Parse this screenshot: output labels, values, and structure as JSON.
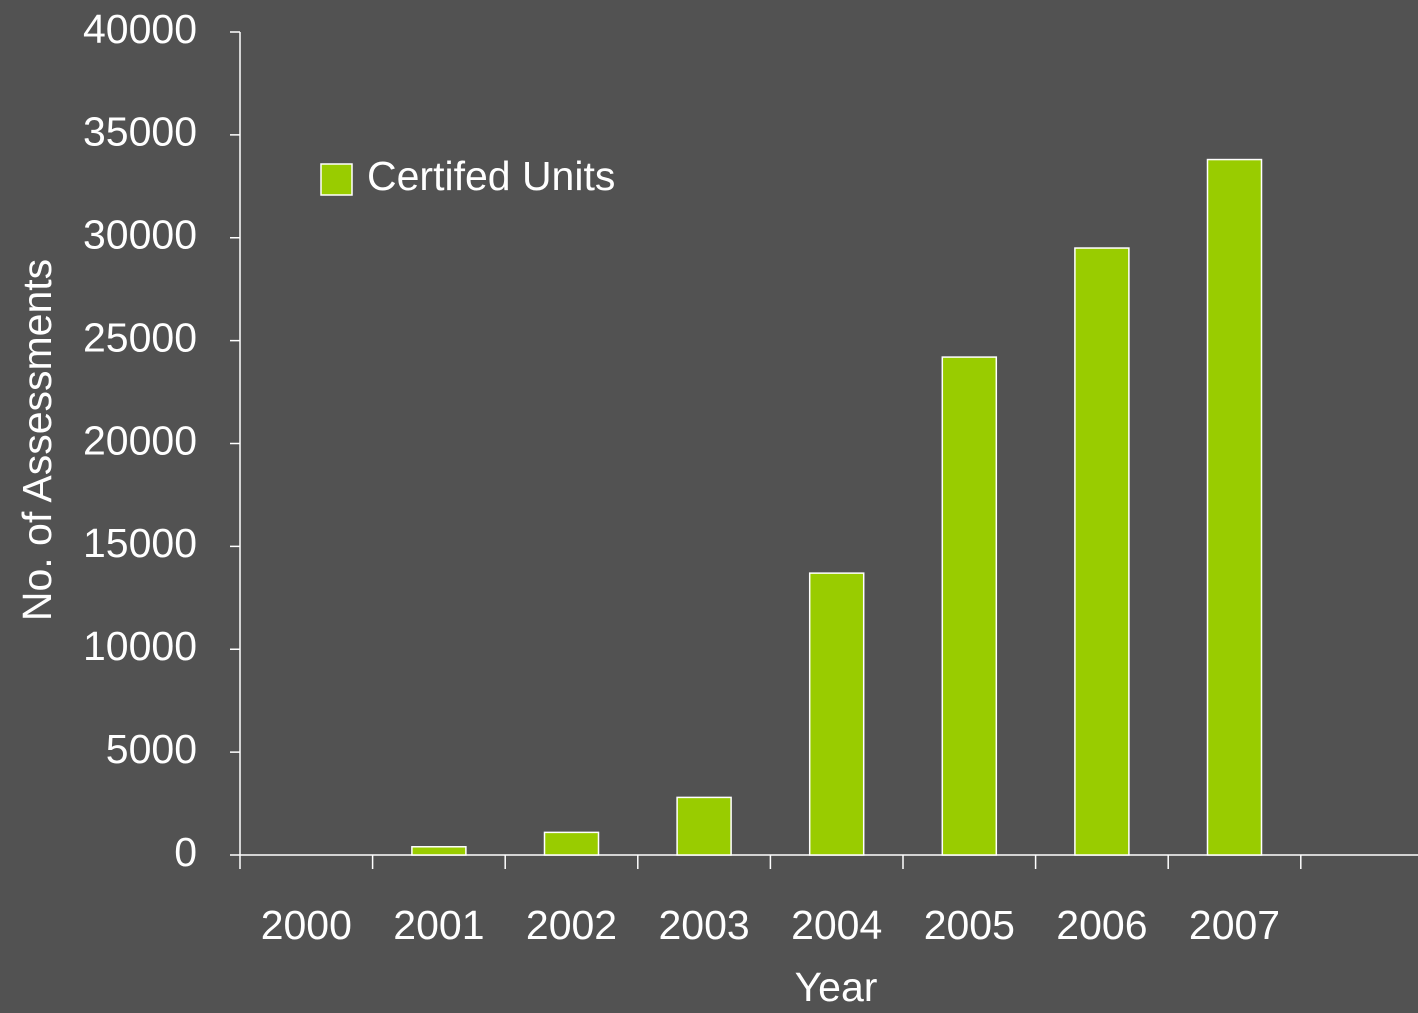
{
  "chart_data": {
    "type": "bar",
    "x_label": "Year",
    "y_label": "No. of Assessments",
    "categories": [
      "2000",
      "2001",
      "2002",
      "2003",
      "2004",
      "2005",
      "2006",
      "2007"
    ],
    "series": [
      {
        "name": "Certifed Units",
        "color": "#99cc00",
        "values": [
          0,
          400,
          1100,
          2800,
          13700,
          24200,
          29500,
          33800
        ]
      }
    ],
    "ylim": [
      0,
      40000
    ],
    "yticks": [
      0,
      5000,
      10000,
      15000,
      20000,
      25000,
      30000,
      35000,
      40000
    ],
    "legend": "upper left"
  }
}
